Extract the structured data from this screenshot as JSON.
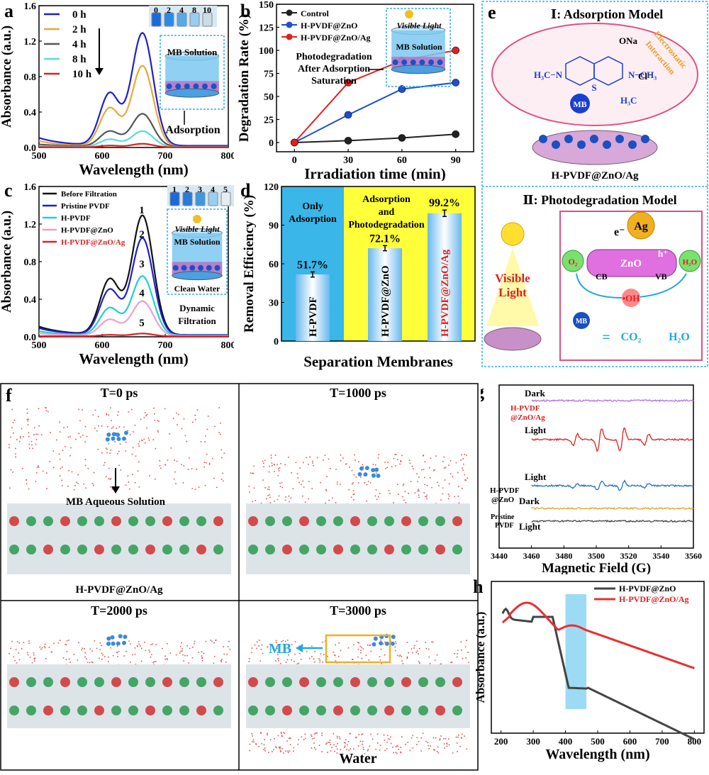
{
  "panel_labels": {
    "a": "a",
    "b": "b",
    "c": "c",
    "d": "d",
    "e": "e",
    "f": "f",
    "g": "g",
    "h": "h"
  },
  "chart_data": [
    {
      "id": "a",
      "type": "line",
      "xlabel": "Wavelength (nm)",
      "ylabel": "Absorbance (a.u.)",
      "xlim": [
        500,
        800
      ],
      "ylim": [
        0,
        1.6
      ],
      "xticks": [
        500,
        600,
        700,
        800
      ],
      "yticks": [
        0.0,
        0.4,
        0.8,
        1.2,
        1.6
      ],
      "legend_position": "top-left",
      "series": [
        {
          "name": "0 h",
          "color": "#1f1fd0",
          "peak": 1.27,
          "shoulder": 0.75,
          "base": 0.02
        },
        {
          "name": "2 h",
          "color": "#e8a838",
          "peak": 0.91,
          "shoulder": 0.55,
          "base": 0.01
        },
        {
          "name": "4 h",
          "color": "#555555",
          "peak": 0.37,
          "shoulder": 0.22,
          "base": 0.01
        },
        {
          "name": "8 h",
          "color": "#55dddd",
          "peak": 0.18,
          "shoulder": 0.11,
          "base": 0.005
        },
        {
          "name": "10 h",
          "color": "#e02020",
          "peak": 0.04,
          "shoulder": 0.025,
          "base": 0.002
        }
      ],
      "vials": [
        "0",
        "2",
        "4",
        "8",
        "10"
      ],
      "inset": {
        "solution": "MB Solution",
        "caption": "Adsorption"
      }
    },
    {
      "id": "b",
      "type": "line",
      "xlabel": "Irradiation time (min)",
      "ylabel": "Degradation Rate (%)",
      "xlim": [
        -10,
        100
      ],
      "ylim": [
        -10,
        150
      ],
      "xticks": [
        0,
        30,
        60,
        90
      ],
      "yticks": [
        0,
        25,
        50,
        75,
        100,
        125,
        150
      ],
      "x": [
        0,
        30,
        60,
        90
      ],
      "series": [
        {
          "name": "Control",
          "color": "#222222",
          "values": [
            0,
            2,
            5,
            9
          ]
        },
        {
          "name": "H-PVDF@ZnO",
          "color": "#1f4fd0",
          "values": [
            0,
            30,
            58,
            65
          ]
        },
        {
          "name": "H-PVDF@ZnO/Ag",
          "color": "#e02020",
          "values": [
            0,
            65,
            89,
            100
          ]
        }
      ],
      "annotation": [
        "Photodegradation",
        "After Adsorption",
        "Saturation"
      ],
      "inset": {
        "light": "Visible Light",
        "solution": "MB Solution"
      }
    },
    {
      "id": "c",
      "type": "line",
      "xlabel": "Wavelength (nm)",
      "ylabel": "Absorbance (a.u.)",
      "xlim": [
        500,
        800
      ],
      "ylim": [
        0,
        1.6
      ],
      "xticks": [
        500,
        600,
        700,
        800
      ],
      "yticks": [
        0.0,
        0.4,
        0.8,
        1.2,
        1.6
      ],
      "series": [
        {
          "name": "Before Filtration",
          "color": "#111111",
          "peak": 1.27,
          "shoulder": 0.75,
          "base": 0.02,
          "num": "1"
        },
        {
          "name": "Pristine PVDF",
          "color": "#1f1fd0",
          "peak": 1.03,
          "shoulder": 0.61,
          "base": 0.02,
          "num": "2"
        },
        {
          "name": "H-PVDF",
          "color": "#20d0d0",
          "peak": 0.63,
          "shoulder": 0.37,
          "base": 0.015,
          "num": "3"
        },
        {
          "name": "H-PVDF@ZnO",
          "color": "#f0a0c8",
          "peak": 0.37,
          "shoulder": 0.22,
          "base": 0.01,
          "num": "4"
        },
        {
          "name": "H-PVDF@ZnO/Ag",
          "color": "#e02020",
          "peak": 0.03,
          "shoulder": 0.02,
          "base": 0.005,
          "num": "5"
        }
      ],
      "vials": [
        "1",
        "2",
        "3",
        "4",
        "5"
      ],
      "inset": {
        "light": "Visible Light",
        "solution": "MB Solution",
        "water": "Clean Water",
        "caption": "Dynamic Filtration"
      }
    },
    {
      "id": "d",
      "type": "bar",
      "xlabel": "Separation Membranes",
      "ylabel": "Removal Efficiency (%)",
      "ylim": [
        0,
        120
      ],
      "yticks": [
        0,
        30,
        60,
        90,
        120
      ],
      "categories": [
        "H-PVDF",
        "H-PVDF@ZnO",
        "H-PVDF@ZnO/Ag"
      ],
      "values": [
        51.7,
        72.1,
        99.2
      ],
      "value_labels": [
        "51.7%",
        "72.1%",
        "99.2%"
      ],
      "errors": [
        2.0,
        2.0,
        2.5
      ],
      "sections": [
        {
          "label": [
            "Only",
            "Adsorption"
          ],
          "color": "#3ab6e8"
        },
        {
          "label": [
            "Adsorption",
            "and",
            "Photodegradation"
          ],
          "color": "#ffff3a"
        }
      ]
    },
    {
      "id": "g",
      "type": "line",
      "xlabel": "Magnetic Field (G)",
      "xlim": [
        3440,
        3560
      ],
      "xticks": [
        3440,
        3460,
        3480,
        3500,
        3520,
        3540,
        3560
      ],
      "series": [
        {
          "name": "H-PVDF@ZnO/Ag Dark",
          "color": "#b070e0",
          "amp": 0
        },
        {
          "name": "H-PVDF@ZnO/Ag Light",
          "color": "#e02020",
          "amp": 1.0
        },
        {
          "name": "H-PVDF@ZnO Light",
          "color": "#2070d0",
          "amp": 0.4
        },
        {
          "name": "H-PVDF@ZnO Dark",
          "color": "#d8a830",
          "amp": 0
        },
        {
          "name": "Pristine PVDF Light",
          "color": "#444444",
          "amp": 0
        }
      ],
      "peaks": [
        3487,
        3502,
        3516,
        3531
      ],
      "labels": {
        "dark": "Dark",
        "light": "Light",
        "zno_ag": [
          "H-PVDF",
          "@ZnO/Ag"
        ],
        "zno": [
          "H-PVDF",
          "@ZnO"
        ],
        "pristine": [
          "Pristine",
          "PVDF"
        ]
      }
    },
    {
      "id": "h",
      "type": "line",
      "xlabel": "Wavelength (nm)",
      "ylabel": "Absorbance (a.u.)",
      "xlim": [
        170,
        830
      ],
      "xticks": [
        200,
        300,
        400,
        500,
        600,
        700,
        800
      ],
      "highlight_range": [
        400,
        465
      ],
      "series": [
        {
          "name": "H-PVDF@ZnO",
          "color": "#444444"
        },
        {
          "name": "H-PVDF@ZnO/Ag",
          "color": "#e83030"
        }
      ]
    }
  ],
  "panel_e": {
    "model1_title": "Ⅰ: Adsorption Model",
    "model2_title": "Ⅱ: Photodegradation  Model",
    "electrostatic": [
      "Electrostatic",
      "Interaction"
    ],
    "membrane_label": "H-PVDF@ZnO/Ag",
    "mb": "MB",
    "cl": "Cl⁻",
    "ona": "ONa",
    "light": [
      "Visible",
      "Light"
    ],
    "ag": "Ag",
    "zno": "ZnO",
    "cb": "CB",
    "vb": "VB",
    "e": "e⁻",
    "h": "h⁺",
    "o2": "O₂",
    "h2o": "H₂O",
    "oh": "•OH",
    "co2": "CO₂",
    "eq": "="
  },
  "panel_f": {
    "titles": [
      "T=0 ps",
      "T=1000 ps",
      "T=2000 ps",
      "T=3000 ps"
    ],
    "mb_solution": "MB Aqueous Solution",
    "membrane": "H-PVDF@ZnO/Ag",
    "mb": "MB",
    "water": "Water"
  }
}
